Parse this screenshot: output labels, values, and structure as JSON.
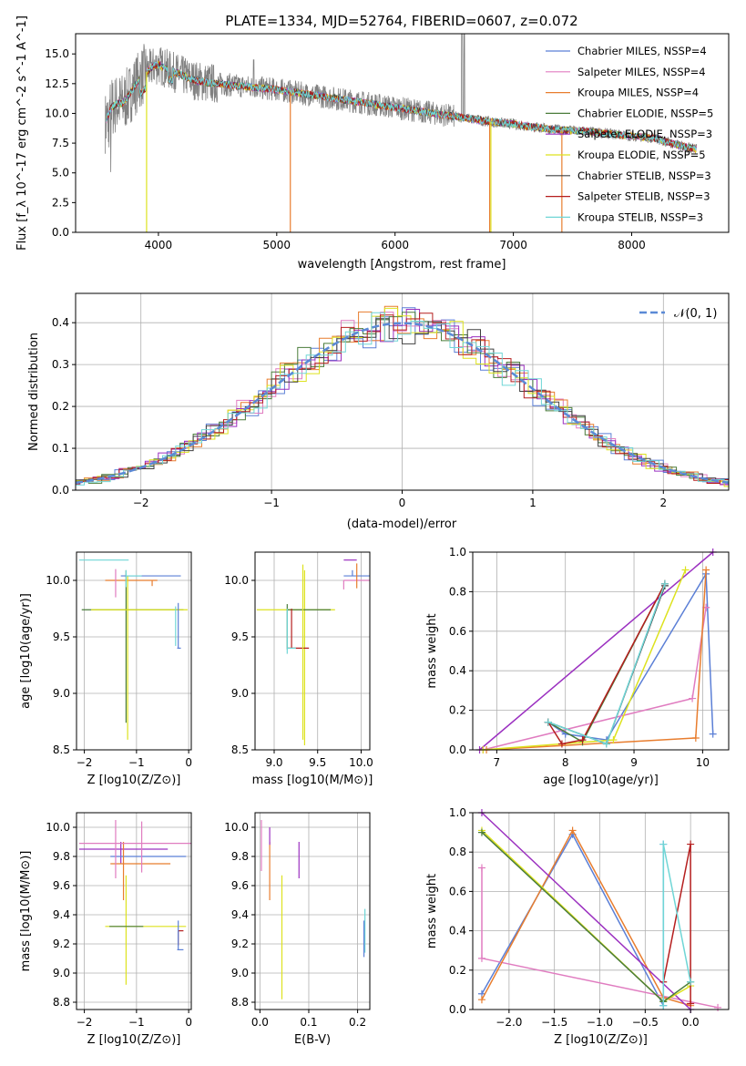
{
  "chart_data": [
    {
      "type": "line",
      "title": "PLATE=1334, MJD=52764, FIBERID=0607, z=0.072",
      "xlabel": "wavelength [Angstrom, rest frame]",
      "ylabel": "Flux [f_λ 10^-17 erg cm^-2 s^-1 A^-1]",
      "xlim": [
        3300,
        8820
      ],
      "ylim": [
        0,
        16.7
      ],
      "xticks": [
        "4000",
        "5000",
        "6000",
        "7000",
        "8000"
      ],
      "yticks": [
        "0.0",
        "2.5",
        "5.0",
        "7.5",
        "10.0",
        "12.5",
        "15.0"
      ],
      "legend_position": "top-right",
      "grid": false,
      "spectrum": {
        "x": [
          3550,
          3600,
          3650,
          3700,
          3750,
          3800,
          3850,
          3900,
          3950,
          4000,
          4100,
          4200,
          4300,
          4400,
          4500,
          4600,
          4700,
          4800,
          4900,
          5000,
          5200,
          5400,
          5600,
          5800,
          6000,
          6200,
          6400,
          6600,
          6800,
          7000,
          7200,
          7400,
          7600,
          7800,
          8000,
          8200,
          8400,
          8550
        ],
        "y": [
          9.2,
          10.5,
          10.8,
          10.9,
          11.5,
          12.3,
          13.0,
          13.5,
          13.9,
          14.1,
          13.6,
          13.2,
          12.8,
          12.6,
          12.5,
          12.4,
          12.3,
          12.2,
          12.1,
          12.0,
          11.7,
          11.4,
          11.1,
          10.8,
          10.5,
          10.2,
          9.9,
          9.6,
          9.3,
          9.1,
          8.8,
          8.6,
          8.5,
          8.3,
          8.1,
          7.9,
          7.3,
          7.0
        ]
      },
      "series": [
        {
          "name": "Chabrier MILES, N_SSP=4",
          "color": "#5b7fd6"
        },
        {
          "name": "Salpeter MILES, N_SSP=4",
          "color": "#e07cc0"
        },
        {
          "name": "Kroupa MILES, N_SSP=4",
          "color": "#e87d2e"
        },
        {
          "name": "Chabrier ELODIE, N_SSP=5",
          "color": "#4a7c3a"
        },
        {
          "name": "Salpeter ELODIE, N_SSP=3",
          "color": "#9b30c0"
        },
        {
          "name": "Kroupa ELODIE, N_SSP=5",
          "color": "#dde21e"
        },
        {
          "name": "Chabrier STELIB, N_SSP=3",
          "color": "#404040"
        },
        {
          "name": "Salpeter STELIB, N_SSP=3",
          "color": "#b51e1e"
        },
        {
          "name": "Kroupa STELIB, N_SSP=3",
          "color": "#6fd6d6"
        }
      ]
    },
    {
      "type": "line",
      "xlabel": "(data-model)/error",
      "ylabel": "Normed distribution",
      "xlim": [
        -2.5,
        2.5
      ],
      "ylim": [
        0,
        0.47
      ],
      "xticks": [
        "−2",
        "−1",
        "0",
        "1",
        "2"
      ],
      "yticks": [
        "0.0",
        "0.1",
        "0.2",
        "0.3",
        "0.4"
      ],
      "legend": "𝒩(0, 1)",
      "legend_position": "top-right",
      "grid": true,
      "gaussian": {
        "mu": 0,
        "sigma": 1
      }
    },
    {
      "type": "scatter",
      "xlabel": "Z [log10(Z/Z⊙)]",
      "ylabel": "age [log10(age/yr)]",
      "xlim": [
        -2.15,
        0.05
      ],
      "ylim": [
        8.5,
        10.25
      ],
      "xticks": [
        "−2",
        "−1",
        "0"
      ],
      "yticks": [
        "8.5",
        "9.0",
        "9.5",
        "10.0"
      ],
      "grid": true
    },
    {
      "type": "scatter",
      "xlabel": "mass [log10(M/M⊙)]",
      "xlim": [
        8.78,
        10.1
      ],
      "ylim": [
        8.5,
        10.25
      ],
      "xticks": [
        "9.0",
        "9.5",
        "10.0"
      ],
      "yticks": [
        "8.5",
        "9.0",
        "9.5",
        "10.0"
      ],
      "grid": true
    },
    {
      "type": "line",
      "xlabel": "age [log10(age/yr)]",
      "ylabel": "mass weight",
      "xlim": [
        6.65,
        10.38
      ],
      "ylim": [
        0,
        1.0
      ],
      "xticks": [
        "7",
        "8",
        "9",
        "10"
      ],
      "yticks": [
        "0.0",
        "0.2",
        "0.4",
        "0.6",
        "0.8",
        "1.0"
      ],
      "grid": true,
      "series": [
        {
          "color": "#5b7fd6",
          "x": [
            7.75,
            8.0,
            8.6,
            10.05,
            10.15
          ],
          "y": [
            0.14,
            0.08,
            0.05,
            0.89,
            0.08
          ]
        },
        {
          "color": "#e07cc0",
          "x": [
            6.8,
            9.85,
            10.05,
            10.05
          ],
          "y": [
            0.0,
            0.26,
            0.72,
            0.72
          ]
        },
        {
          "color": "#e87d2e",
          "x": [
            6.85,
            9.9,
            10.05
          ],
          "y": [
            0.0,
            0.06,
            0.91
          ]
        },
        {
          "color": "#4a7c3a",
          "x": [
            7.75,
            8.25,
            9.45
          ],
          "y": [
            0.14,
            0.04,
            0.84
          ]
        },
        {
          "color": "#9b30c0",
          "x": [
            6.75,
            10.15
          ],
          "y": [
            0.0,
            1.0
          ]
        },
        {
          "color": "#dde21e",
          "x": [
            6.8,
            8.7,
            9.75
          ],
          "y": [
            0.0,
            0.05,
            0.91
          ]
        },
        {
          "color": "#404040",
          "x": [
            7.75,
            8.6,
            9.45
          ],
          "y": [
            0.14,
            0.03,
            0.83
          ]
        },
        {
          "color": "#b51e1e",
          "x": [
            7.75,
            7.95,
            8.25,
            9.45
          ],
          "y": [
            0.14,
            0.03,
            0.05,
            0.84
          ]
        },
        {
          "color": "#6fd6d6",
          "x": [
            7.75,
            8.6,
            9.45
          ],
          "y": [
            0.14,
            0.03,
            0.84
          ]
        }
      ]
    },
    {
      "type": "scatter",
      "xlabel": "Z [log10(Z/Z⊙)]",
      "ylabel": "mass [log10(M/M⊙)]",
      "xlim": [
        -2.15,
        0.05
      ],
      "ylim": [
        8.75,
        10.1
      ],
      "xticks": [
        "−2",
        "−1",
        "0"
      ],
      "yticks": [
        "8.8",
        "9.0",
        "9.2",
        "9.4",
        "9.6",
        "9.8",
        "10.0"
      ],
      "grid": true
    },
    {
      "type": "scatter",
      "xlabel": "E(B-V)",
      "xlim": [
        -0.01,
        0.225
      ],
      "ylim": [
        8.75,
        10.1
      ],
      "xticks": [
        "0.0",
        "0.1",
        "0.2"
      ],
      "yticks": [
        "8.8",
        "9.0",
        "9.2",
        "9.4",
        "9.6",
        "9.8",
        "10.0"
      ],
      "grid": true
    },
    {
      "type": "line",
      "xlabel": "Z [log10(Z/Z⊙)]",
      "ylabel": "mass weight",
      "xlim": [
        -2.4,
        0.42
      ],
      "ylim": [
        0,
        1.0
      ],
      "xticks": [
        "−2.0",
        "−1.5",
        "−1.0",
        "−0.5",
        "0.0"
      ],
      "yticks": [
        "0.0",
        "0.2",
        "0.4",
        "0.6",
        "0.8",
        "1.0"
      ],
      "grid": true,
      "series": [
        {
          "color": "#5b7fd6",
          "x": [
            -2.3,
            -1.3,
            -0.3,
            -0.3
          ],
          "y": [
            0.08,
            0.89,
            0.02,
            0.84
          ]
        },
        {
          "color": "#e07cc0",
          "x": [
            -2.3,
            -2.3,
            0.3
          ],
          "y": [
            0.72,
            0.26,
            0.01
          ]
        },
        {
          "color": "#e87d2e",
          "x": [
            -2.3,
            -1.3,
            -0.3,
            0.0
          ],
          "y": [
            0.05,
            0.91,
            0.06,
            0.02
          ]
        },
        {
          "color": "#9b30c0",
          "x": [
            -2.3,
            0.0
          ],
          "y": [
            1.0,
            0.0
          ]
        },
        {
          "color": "#dde21e",
          "x": [
            -2.3,
            -0.3,
            0.0
          ],
          "y": [
            0.91,
            0.04,
            0.12
          ]
        },
        {
          "color": "#4a7c3a",
          "x": [
            -2.3,
            -0.3,
            0.0
          ],
          "y": [
            0.9,
            0.04,
            0.14
          ]
        },
        {
          "color": "#b51e1e",
          "x": [
            -0.3,
            0.0,
            0.0
          ],
          "y": [
            0.14,
            0.84,
            0.03
          ]
        },
        {
          "color": "#6fd6d6",
          "x": [
            -0.3,
            -0.3,
            0.0
          ],
          "y": [
            0.02,
            0.84,
            0.14
          ]
        }
      ]
    }
  ]
}
